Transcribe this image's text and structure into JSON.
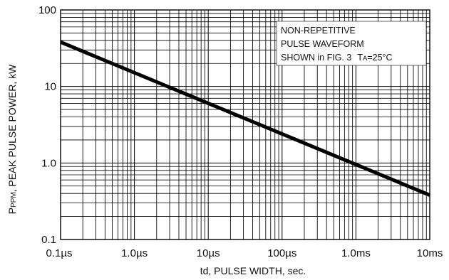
{
  "chart_data": {
    "type": "line",
    "xscale": "log",
    "yscale": "log",
    "xlim_seconds": [
      1e-07,
      0.01
    ],
    "ylim_kW": [
      0.1,
      100
    ],
    "grid": true,
    "x_tick_labels": [
      "0.1µs",
      "1.0µs",
      "10µs",
      "100µs",
      "1.0ms",
      "10ms"
    ],
    "y_tick_labels": [
      "100",
      "10",
      "1.0",
      "0.1"
    ],
    "xlabel": "td, PULSE WIDTH, sec.",
    "ylabel": {
      "prefix": "P",
      "subscript": "PPM",
      "suffix": ", PEAK PULSE POWER, kW"
    },
    "annotation": {
      "line1": "NON-REPETITIVE",
      "line2": "PULSE WAVEFORM",
      "line3": "SHOWN in FIG. 3",
      "cond_prefix": "T",
      "cond_sub": "A",
      "cond_suffix": "=25°C"
    },
    "series": [
      {
        "x_seconds": [
          1e-07,
          0.01
        ],
        "y_kW": [
          38,
          0.38
        ]
      }
    ]
  }
}
